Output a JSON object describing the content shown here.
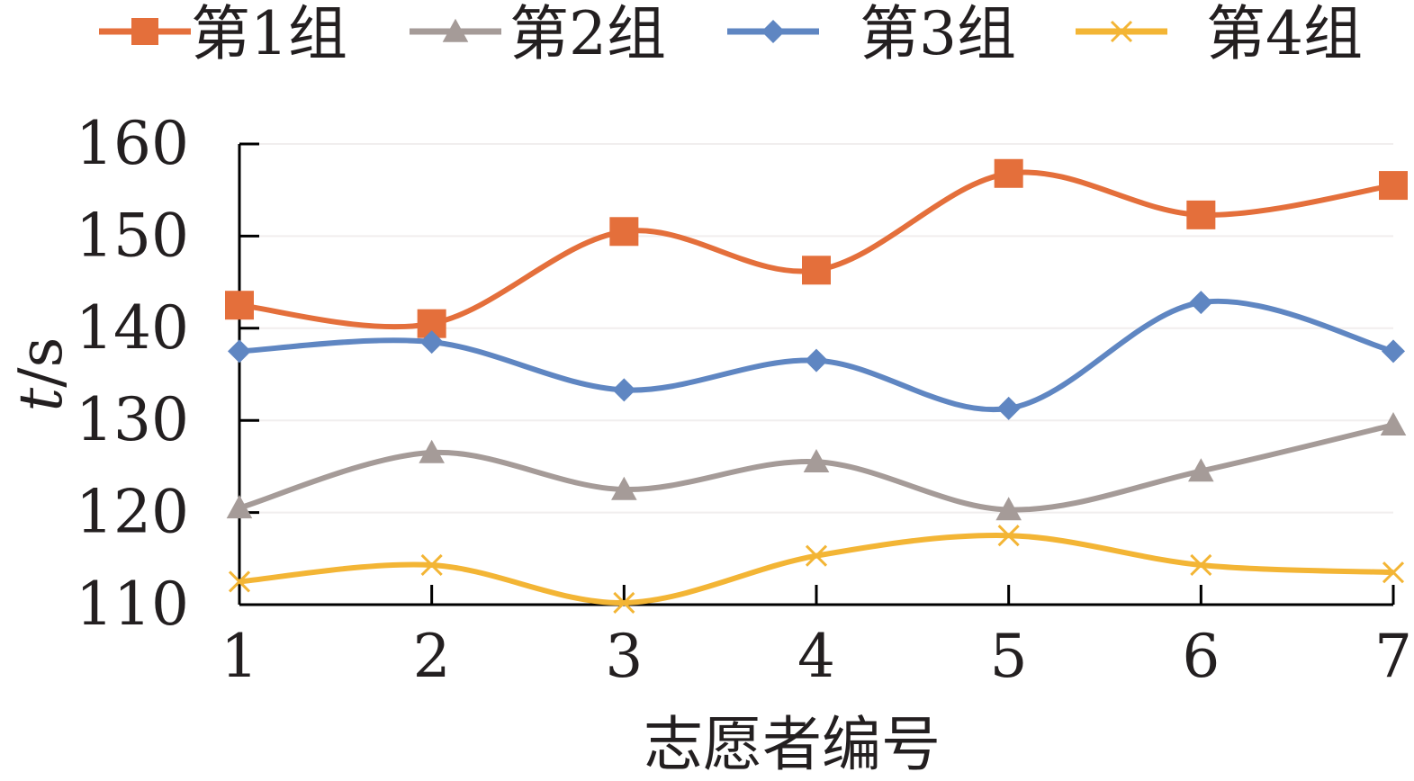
{
  "chart_data": {
    "type": "line",
    "title": "",
    "xlabel": "志愿者编号",
    "ylabel_italic": "t",
    "ylabel_unit": "/s",
    "x": [
      1,
      2,
      3,
      4,
      5,
      6,
      7
    ],
    "x_tick_labels": [
      "1",
      "2",
      "3",
      "4",
      "5",
      "6",
      "7"
    ],
    "y_tick_labels": [
      "110",
      "120",
      "130",
      "140",
      "150",
      "160"
    ],
    "ylim": [
      110,
      160
    ],
    "grid": "horizontal",
    "legend_position": "top",
    "series": [
      {
        "name": "第1组",
        "color": "#e46f3b",
        "marker": "square",
        "values": [
          142.5,
          140.5,
          150.5,
          146.3,
          156.8,
          152.3,
          155.5
        ]
      },
      {
        "name": "第2组",
        "color": "#a59b98",
        "marker": "triangle",
        "values": [
          120.5,
          126.5,
          122.5,
          125.5,
          120.3,
          124.5,
          129.5
        ]
      },
      {
        "name": "第3组",
        "color": "#5f86c2",
        "marker": "diamond",
        "values": [
          137.5,
          138.5,
          133.3,
          136.5,
          131.3,
          142.8,
          137.5
        ]
      },
      {
        "name": "第4组",
        "color": "#f3b535",
        "marker": "x",
        "values": [
          112.5,
          114.3,
          110.2,
          115.3,
          117.5,
          114.3,
          113.5
        ]
      }
    ]
  }
}
